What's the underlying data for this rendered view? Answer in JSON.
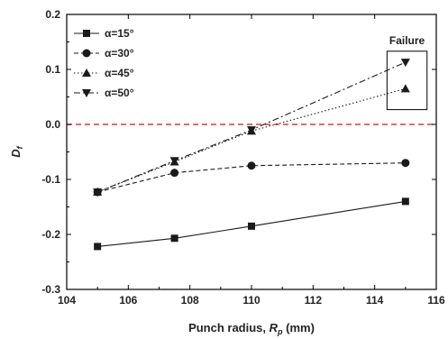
{
  "chart_data": {
    "type": "line",
    "xlabel_main": "Punch radius, ",
    "xlabel_symbol": "R",
    "xlabel_sub": "p",
    "xlabel_unit": " (mm)",
    "ylabel_symbol": "D",
    "ylabel_sub": "f",
    "xlim": [
      104,
      116
    ],
    "ylim": [
      -0.3,
      0.2
    ],
    "xticks": [
      "104",
      "106",
      "108",
      "110",
      "112",
      "114",
      "116"
    ],
    "yticks": [
      "-0.3",
      "-0.2",
      "-0.1",
      "0.0",
      "0.1",
      "0.2"
    ],
    "reference_line": {
      "y": 0.0,
      "color": "#e23a3a",
      "style": "dashed"
    },
    "annotation": {
      "text": "Failure",
      "x_range": [
        114.4,
        115.7
      ],
      "y_range": [
        0.04,
        0.12
      ]
    },
    "legend_position": "upper-left",
    "series": [
      {
        "name": "α=15°",
        "marker": "square",
        "line": "solid",
        "x": [
          105,
          107.5,
          110,
          115
        ],
        "y": [
          -0.222,
          -0.207,
          -0.185,
          -0.14
        ]
      },
      {
        "name": "α=30°",
        "marker": "circle",
        "line": "dashed",
        "x": [
          105,
          107.5,
          110,
          115
        ],
        "y": [
          -0.123,
          -0.088,
          -0.075,
          -0.07
        ]
      },
      {
        "name": "α=45°",
        "marker": "triangle-up",
        "line": "dotted",
        "x": [
          105,
          107.5,
          110,
          115
        ],
        "y": [
          -0.123,
          -0.068,
          -0.012,
          0.065
        ]
      },
      {
        "name": "α=50°",
        "marker": "triangle-down",
        "line": "dashdot",
        "x": [
          105,
          107.5,
          110,
          115
        ],
        "y": [
          -0.123,
          -0.066,
          -0.01,
          0.113
        ]
      }
    ]
  },
  "colors": {
    "series": "#1a1a1a",
    "axis": "#000000",
    "reference": "#e23a3a"
  }
}
